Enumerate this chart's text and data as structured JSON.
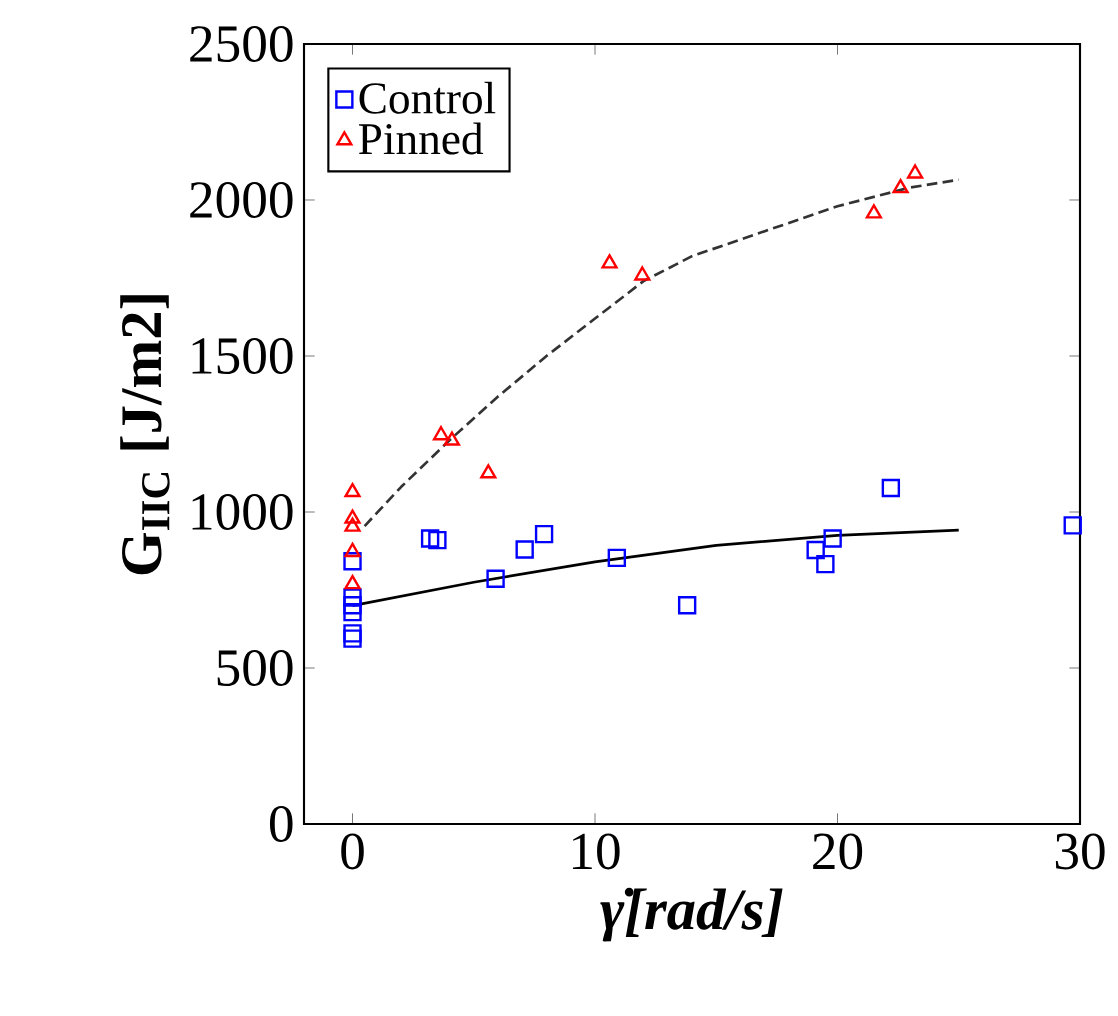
{
  "chart_data": {
    "type": "scatter",
    "xlabel": "γ̇[rad/s]",
    "ylabel": "G$_{IIC}$ [J/m2]",
    "xlim": [
      -2,
      30
    ],
    "ylim": [
      0,
      2500
    ],
    "xticks": [
      0,
      10,
      20,
      30
    ],
    "yticks": [
      0,
      500,
      1000,
      1500,
      2000,
      2500
    ],
    "grid": false,
    "legend": "top left",
    "series": [
      {
        "name": "Control",
        "marker": "square",
        "color": "#0000ff",
        "x": [
          0,
          0,
          0,
          0,
          0,
          0,
          3.2,
          3.5,
          5.9,
          7.1,
          7.9,
          10.9,
          13.8,
          19.1,
          19.5,
          19.8,
          22.2,
          29.7
        ],
        "values": [
          594,
          611,
          679,
          701,
          726,
          842,
          915,
          910,
          786,
          880,
          929,
          853,
          701,
          878,
          833,
          915,
          1077,
          957
        ]
      },
      {
        "name": "Pinned",
        "marker": "triangle",
        "color": "#ff0000",
        "x": [
          0,
          0,
          0,
          0,
          0,
          3.65,
          4.1,
          5.6,
          10.6,
          11.95,
          21.5,
          22.6,
          23.2
        ],
        "values": [
          1064,
          979,
          953,
          872,
          769,
          1246,
          1229,
          1124,
          1797,
          1758,
          1957,
          2038,
          2085
        ]
      },
      {
        "type": "line",
        "marker": "none",
        "line_style": "solid",
        "color": "#000000",
        "x": [
          0,
          5,
          10,
          15,
          20,
          25
        ],
        "values": [
          700,
          775,
          840,
          893,
          925,
          942
        ]
      },
      {
        "type": "line",
        "marker": "none",
        "line_style": "dashed",
        "color": "#333333",
        "x": [
          0.5,
          2,
          4,
          6,
          8,
          10,
          12,
          14,
          17,
          20,
          23,
          25
        ],
        "values": [
          955,
          1080,
          1230,
          1370,
          1500,
          1620,
          1740,
          1820,
          1900,
          1980,
          2040,
          2065
        ]
      }
    ]
  }
}
